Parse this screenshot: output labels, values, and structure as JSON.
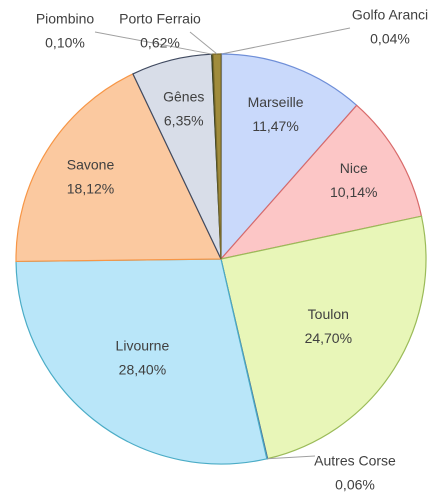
{
  "chart_data": {
    "type": "pie",
    "categories": [
      "Golfo Aranci",
      "Marseille",
      "Nice",
      "Toulon",
      "Autres Corse",
      "Livourne",
      "Savone",
      "Gênes",
      "Piombino",
      "Porto Ferraio"
    ],
    "values": [
      0.04,
      11.47,
      10.14,
      24.7,
      0.06,
      28.4,
      18.12,
      6.35,
      0.1,
      0.62
    ],
    "value_labels": [
      "0,04%",
      "11,47%",
      "10,14%",
      "24,70%",
      "0,06%",
      "28,40%",
      "18,12%",
      "6,35%",
      "0,10%",
      "0,62%"
    ],
    "colors": [
      "#8064a2",
      "#c9d9fb",
      "#fcc6c6",
      "#e8f6b8",
      "#6e8fc0",
      "#b9e6f9",
      "#fbc9a0",
      "#d8dde8",
      "#4f5a2a",
      "#a08c3c"
    ],
    "strokes": [
      "#5f4a80",
      "#6f8fd8",
      "#d86a6a",
      "#9bbb59",
      "#4a6fa0",
      "#4bacc6",
      "#f79646",
      "#404a60",
      "#3a4220",
      "#7a6a2a"
    ]
  }
}
